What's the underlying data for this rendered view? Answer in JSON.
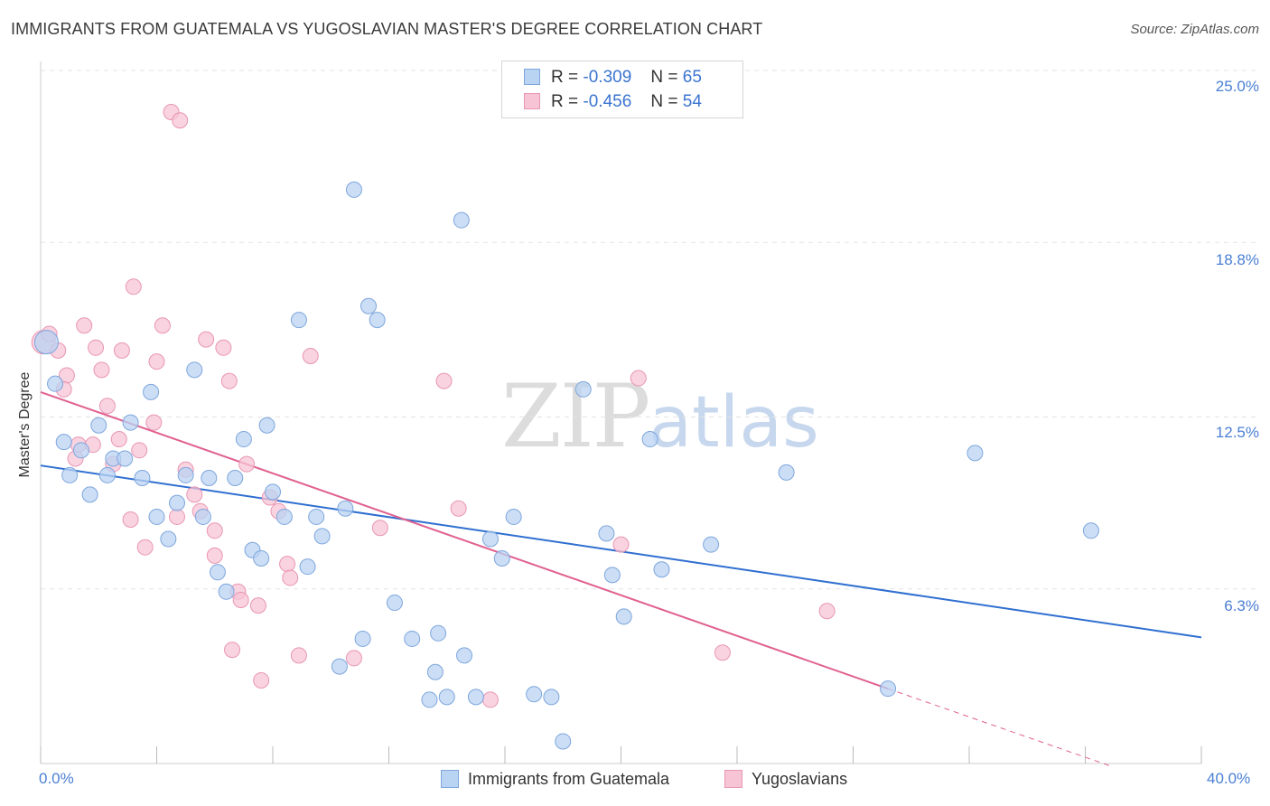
{
  "header": {
    "title": "IMMIGRANTS FROM GUATEMALA VS YUGOSLAVIAN MASTER'S DEGREE CORRELATION CHART",
    "source": "Source: ZipAtlas.com"
  },
  "watermark": {
    "zip": "ZIP",
    "atlas": "atlas"
  },
  "legend": {
    "rows": [
      {
        "r_label": "R =",
        "r_value": "-0.309",
        "n_label": "N =",
        "n_value": "65"
      },
      {
        "r_label": "R =",
        "r_value": "-0.456",
        "n_label": "N =",
        "n_value": "54"
      }
    ]
  },
  "colors": {
    "blue_fill": "#b9d3f3",
    "blue_stroke": "#7ea6dc",
    "blue_line": "#2f6fd0",
    "pink_fill": "#f7c4d5",
    "pink_stroke": "#e996b3",
    "pink_line": "#e0608f",
    "grid": "#e3e3e3",
    "tick_text": "#4a7fd4"
  },
  "chart_data": {
    "type": "scatter",
    "title": "IMMIGRANTS FROM GUATEMALA VS YUGOSLAVIAN MASTER'S DEGREE CORRELATION CHART",
    "xlabel": "",
    "ylabel": "Master's Degree",
    "xlim": [
      0,
      40
    ],
    "ylim": [
      0,
      25.0
    ],
    "x_tick_labels": [
      "0.0%",
      "40.0%"
    ],
    "y_ticks": [
      6.3,
      12.5,
      18.8,
      25.0
    ],
    "y_tick_labels": [
      "6.3%",
      "12.5%",
      "18.8%",
      "25.0%"
    ],
    "grid": "horizontal dashed",
    "legend_position": "top-center",
    "series": [
      {
        "name": "Immigrants from Guatemala",
        "color": "#b9d3f3",
        "r": -0.309,
        "n": 65,
        "trend": {
          "x": [
            0,
            40
          ],
          "y": [
            10.75,
            4.55
          ]
        },
        "points": [
          [
            0.2,
            15.2
          ],
          [
            0.5,
            13.7
          ],
          [
            0.8,
            11.6
          ],
          [
            1.0,
            10.4
          ],
          [
            1.4,
            11.3
          ],
          [
            1.7,
            9.7
          ],
          [
            2.0,
            12.2
          ],
          [
            2.3,
            10.4
          ],
          [
            2.5,
            11.0
          ],
          [
            2.9,
            11.0
          ],
          [
            3.1,
            12.3
          ],
          [
            3.5,
            10.3
          ],
          [
            3.8,
            13.4
          ],
          [
            4.0,
            8.9
          ],
          [
            4.4,
            8.1
          ],
          [
            4.7,
            9.4
          ],
          [
            5.0,
            10.4
          ],
          [
            5.3,
            14.2
          ],
          [
            5.6,
            8.9
          ],
          [
            5.8,
            10.3
          ],
          [
            6.1,
            6.9
          ],
          [
            6.4,
            6.2
          ],
          [
            6.7,
            10.3
          ],
          [
            7.0,
            11.7
          ],
          [
            7.3,
            7.7
          ],
          [
            7.6,
            7.4
          ],
          [
            7.8,
            12.2
          ],
          [
            8.0,
            9.8
          ],
          [
            8.4,
            8.9
          ],
          [
            8.9,
            16.0
          ],
          [
            9.2,
            7.1
          ],
          [
            9.5,
            8.9
          ],
          [
            9.7,
            8.2
          ],
          [
            10.3,
            3.5
          ],
          [
            10.5,
            9.2
          ],
          [
            10.8,
            20.7
          ],
          [
            11.1,
            4.5
          ],
          [
            11.3,
            16.5
          ],
          [
            11.6,
            16.0
          ],
          [
            12.2,
            5.8
          ],
          [
            12.8,
            4.5
          ],
          [
            13.4,
            2.3
          ],
          [
            13.6,
            3.3
          ],
          [
            13.7,
            4.7
          ],
          [
            14.0,
            2.4
          ],
          [
            14.6,
            3.9
          ],
          [
            15.0,
            2.4
          ],
          [
            15.5,
            8.1
          ],
          [
            15.9,
            7.4
          ],
          [
            16.3,
            8.9
          ],
          [
            17.0,
            2.5
          ],
          [
            17.6,
            2.4
          ],
          [
            18.0,
            0.8
          ],
          [
            18.7,
            13.5
          ],
          [
            19.5,
            8.3
          ],
          [
            19.7,
            6.8
          ],
          [
            20.1,
            5.3
          ],
          [
            21.0,
            11.7
          ],
          [
            21.4,
            7.0
          ],
          [
            23.1,
            7.9
          ],
          [
            25.7,
            10.5
          ],
          [
            29.2,
            2.7
          ],
          [
            32.2,
            11.2
          ],
          [
            36.2,
            8.4
          ],
          [
            14.5,
            19.6
          ]
        ]
      },
      {
        "name": "Yugoslavians",
        "color": "#f7c4d5",
        "r": -0.456,
        "n": 54,
        "trend": {
          "x": [
            0,
            29.2
          ],
          "y": [
            13.4,
            2.7
          ]
        },
        "trend_dashed": {
          "x": [
            29.2,
            36.9
          ],
          "y": [
            2.7,
            -0.1
          ]
        },
        "points": [
          [
            0.1,
            15.2
          ],
          [
            0.3,
            15.5
          ],
          [
            0.6,
            14.9
          ],
          [
            0.9,
            14.0
          ],
          [
            0.8,
            13.5
          ],
          [
            1.2,
            11.0
          ],
          [
            1.3,
            11.5
          ],
          [
            1.5,
            15.8
          ],
          [
            1.8,
            11.5
          ],
          [
            1.9,
            15.0
          ],
          [
            2.1,
            14.2
          ],
          [
            2.3,
            12.9
          ],
          [
            2.5,
            10.8
          ],
          [
            2.7,
            11.7
          ],
          [
            2.8,
            14.9
          ],
          [
            3.1,
            8.8
          ],
          [
            3.2,
            17.2
          ],
          [
            3.4,
            11.3
          ],
          [
            3.6,
            7.8
          ],
          [
            3.9,
            12.3
          ],
          [
            4.0,
            14.5
          ],
          [
            4.2,
            15.8
          ],
          [
            4.5,
            23.5
          ],
          [
            4.8,
            23.2
          ],
          [
            4.7,
            8.9
          ],
          [
            5.0,
            10.6
          ],
          [
            5.3,
            9.7
          ],
          [
            5.5,
            9.1
          ],
          [
            5.7,
            15.3
          ],
          [
            6.0,
            8.4
          ],
          [
            6.0,
            7.5
          ],
          [
            6.3,
            15.0
          ],
          [
            6.5,
            13.8
          ],
          [
            6.6,
            4.1
          ],
          [
            6.8,
            6.2
          ],
          [
            6.9,
            5.9
          ],
          [
            7.1,
            10.8
          ],
          [
            7.5,
            5.7
          ],
          [
            7.6,
            3.0
          ],
          [
            7.9,
            9.6
          ],
          [
            8.2,
            9.1
          ],
          [
            8.5,
            7.2
          ],
          [
            8.6,
            6.7
          ],
          [
            8.9,
            3.9
          ],
          [
            9.3,
            14.7
          ],
          [
            10.8,
            3.8
          ],
          [
            11.7,
            8.5
          ],
          [
            13.9,
            13.8
          ],
          [
            14.4,
            9.2
          ],
          [
            15.5,
            2.3
          ],
          [
            20.0,
            7.9
          ],
          [
            20.6,
            13.9
          ],
          [
            23.5,
            4.0
          ],
          [
            27.1,
            5.5
          ]
        ]
      }
    ]
  }
}
